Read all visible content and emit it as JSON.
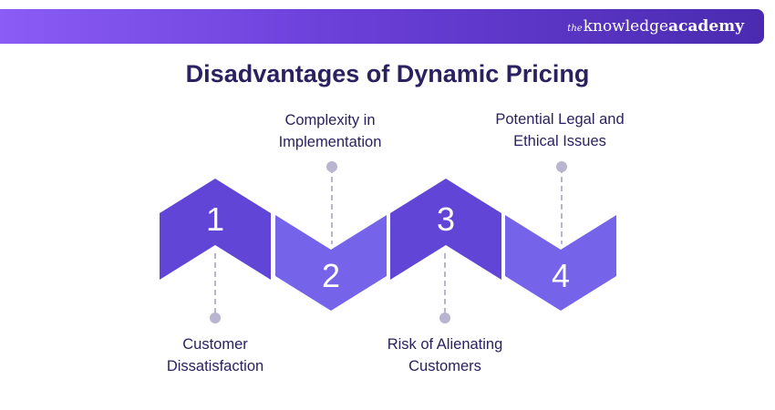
{
  "header": {
    "brand_prefix": "the",
    "brand_knowledge": "knowledge",
    "brand_academy": "academy"
  },
  "title": "Disadvantages of Dynamic Pricing",
  "colors": {
    "dark_block": "#6045d6",
    "light_block": "#7563ea",
    "connector": "#b9b4cf",
    "text": "#2b2160"
  },
  "steps": [
    {
      "number": "1",
      "label_line1": "Customer",
      "label_line2": "Dissatisfaction"
    },
    {
      "number": "2",
      "label_line1": "Complexity in",
      "label_line2": "Implementation"
    },
    {
      "number": "3",
      "label_line1": "Risk of Alienating",
      "label_line2": "Customers"
    },
    {
      "number": "4",
      "label_line1": "Potential Legal and",
      "label_line2": "Ethical Issues"
    }
  ]
}
